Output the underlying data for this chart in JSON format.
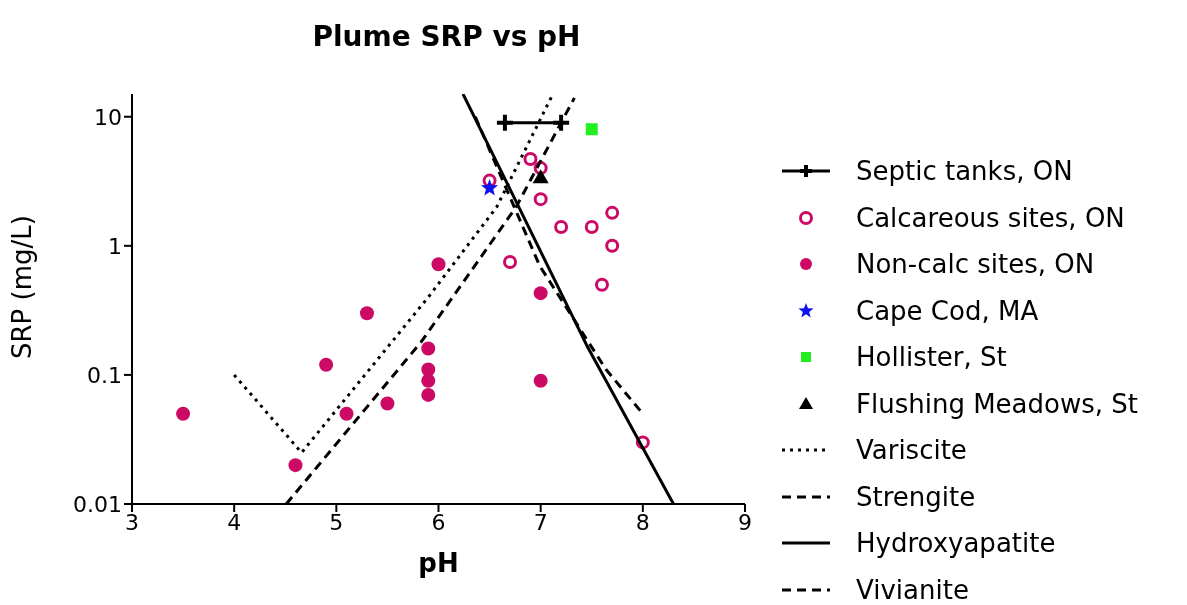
{
  "chart_data": {
    "type": "scatter",
    "title": "Plume SRP vs pH",
    "xlabel": "pH",
    "ylabel": "SRP (mg/L)",
    "xlim": [
      3,
      9
    ],
    "xticks": [
      3,
      4,
      5,
      6,
      7,
      8,
      9
    ],
    "ylim": [
      0.01,
      15
    ],
    "yticks": [
      0.01,
      0.1,
      1,
      10
    ],
    "log": "y",
    "grid": false,
    "legend": "right",
    "series": [
      {
        "name": "Septic tanks, ON",
        "type": "line",
        "color": "#000000",
        "marker": "cross",
        "line_style": "solid",
        "x": [
          6.65,
          7.2
        ],
        "values": [
          9,
          9
        ]
      },
      {
        "name": "Calcareous sites, ON",
        "color": "#cc0a66",
        "marker": "circle-open",
        "x": [
          6.5,
          6.9,
          7.0,
          7.0,
          7.2,
          7.5,
          7.7,
          7.7,
          7.6,
          6.7,
          8.0
        ],
        "values": [
          3.2,
          4.7,
          4.0,
          2.3,
          1.4,
          1.4,
          1.8,
          1.0,
          0.5,
          0.75,
          0.03
        ]
      },
      {
        "name": "Non-calc sites, ON",
        "color": "#cc0a66",
        "marker": "circle",
        "x": [
          3.5,
          4.6,
          4.9,
          5.1,
          5.3,
          5.5,
          5.9,
          5.9,
          5.9,
          5.9,
          6.0,
          7.0,
          7.0
        ],
        "values": [
          0.05,
          0.02,
          0.12,
          0.05,
          0.3,
          0.06,
          0.16,
          0.11,
          0.09,
          0.07,
          0.72,
          0.43,
          0.09
        ]
      },
      {
        "name": "Cape Cod, MA",
        "color": "#1010ee",
        "marker": "star",
        "x": [
          6.5
        ],
        "values": [
          2.8
        ]
      },
      {
        "name": "Hollister, St",
        "color": "#22ee22",
        "marker": "square",
        "x": [
          7.5
        ],
        "values": [
          8
        ]
      },
      {
        "name": "Flushing Meadows, St",
        "color": "#000000",
        "marker": "triangle",
        "x": [
          7.0
        ],
        "values": [
          3.4
        ]
      },
      {
        "name": "Variscite",
        "type": "line",
        "color": "#000000",
        "marker": "none",
        "line_style": "dotted",
        "x": [
          4.0,
          4.66,
          5.9,
          6.57,
          7.12
        ],
        "values": [
          0.1,
          0.025,
          0.4,
          2.0,
          15
        ]
      },
      {
        "name": "Strengite",
        "type": "line",
        "color": "#000000",
        "marker": "none",
        "line_style": "dashed",
        "x": [
          4.51,
          5.83,
          6.76,
          7.33
        ],
        "values": [
          0.01,
          0.18,
          2.0,
          14
        ]
      },
      {
        "name": "Hydroxyapatite",
        "type": "line",
        "color": "#000000",
        "marker": "none",
        "line_style": "solid",
        "x": [
          6.24,
          6.76,
          7.45,
          8.3
        ],
        "values": [
          15,
          2.2,
          0.17,
          0.01
        ]
      },
      {
        "name": "Vivianite",
        "type": "line",
        "color": "#000000",
        "marker": "none",
        "line_style": "dashed",
        "x": [
          6.36,
          6.99,
          7.64,
          8.0
        ],
        "values": [
          10,
          0.7,
          0.11,
          0.05
        ]
      }
    ]
  }
}
